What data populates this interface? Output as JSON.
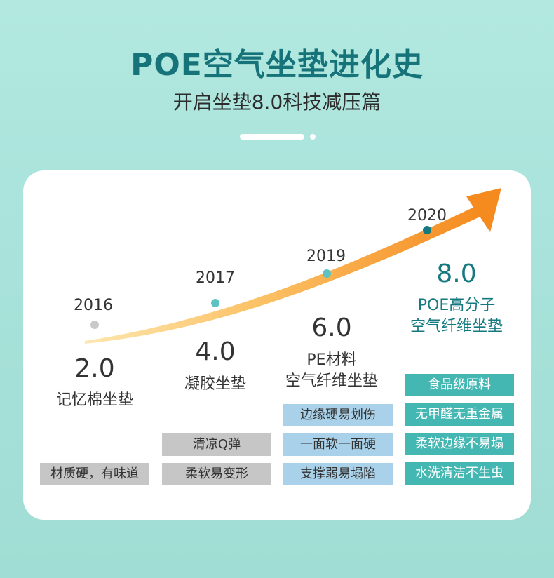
{
  "header": {
    "title": "POE空气坐垫进化史",
    "subtitle": "开启坐垫8.0科技减压篇"
  },
  "colors": {
    "title": "#16737a",
    "accent_teal": "#45b7b3",
    "dot_gray": "#c9c9c9",
    "dot_teal": "#5cc3c3",
    "dot_dark": "#157a80",
    "arrow": "#f58a1f"
  },
  "timeline": [
    {
      "year": "2016",
      "version": "2.0",
      "name": "记忆棉坐垫",
      "tags": [
        "材质硬，有味道"
      ]
    },
    {
      "year": "2017",
      "version": "4.0",
      "name": "凝胶坐垫",
      "tags": [
        "清凉Q弹",
        "柔软易变形"
      ]
    },
    {
      "year": "2019",
      "version": "6.0",
      "name_line1": "PE材料",
      "name_line2": "空气纤维坐垫",
      "tags": [
        "边缘硬易划伤",
        "一面软一面硬",
        "支撑弱易塌陷"
      ]
    },
    {
      "year": "2020",
      "version": "8.0",
      "name_line1": "POE高分子",
      "name_line2": "空气纤维坐垫",
      "tags": [
        "食品级原料",
        "无甲醛无重金属",
        "柔软边缘不易塌",
        "水洗清洁不生虫"
      ]
    }
  ]
}
